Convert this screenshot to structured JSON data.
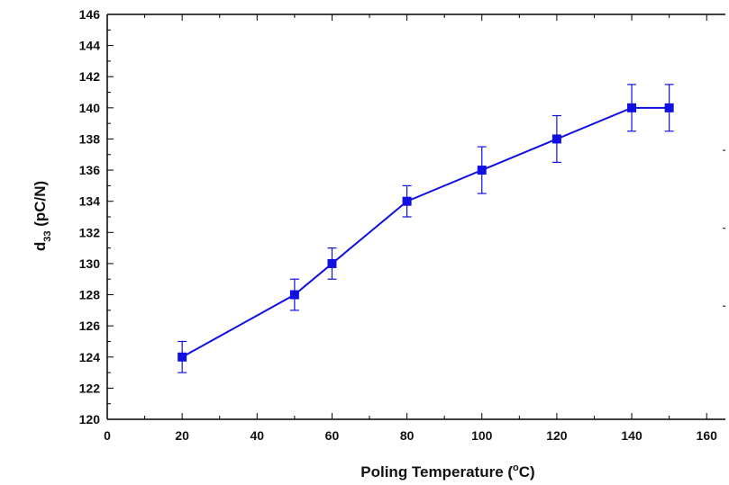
{
  "chart_data": {
    "type": "line",
    "title": "",
    "xlabel": "Poling Temperature (",
    "xlabel_sup": "o",
    "xlabel_tail": "C)",
    "ylabel_main": "d",
    "ylabel_sub": "33",
    "ylabel_tail": " (pC/N)",
    "xlim": [
      0,
      165
    ],
    "ylim": [
      120,
      146
    ],
    "xticks": [
      0,
      20,
      40,
      60,
      80,
      100,
      120,
      140,
      160
    ],
    "yticks": [
      120,
      122,
      124,
      126,
      128,
      130,
      132,
      134,
      136,
      138,
      140,
      142,
      144,
      146
    ],
    "grid": false,
    "legend": "none",
    "color": "#1010e0",
    "marker": "square",
    "series": [
      {
        "x": [
          20,
          50,
          60,
          80,
          100,
          120,
          140,
          150
        ],
        "y": [
          124,
          128,
          130,
          134,
          136,
          138,
          140,
          140
        ],
        "err": [
          1.0,
          1.0,
          1.0,
          1.0,
          1.5,
          1.5,
          1.5,
          1.5
        ]
      }
    ]
  }
}
